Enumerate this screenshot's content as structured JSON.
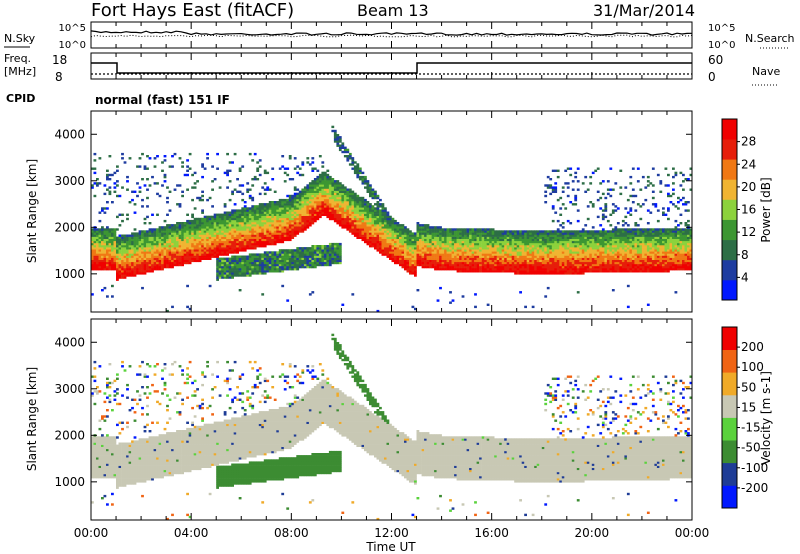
{
  "header": {
    "station": "Fort Hays East (fitACF)",
    "beam": "Beam 13",
    "date": "31/Mar/2014"
  },
  "top_panels": {
    "nsky_label": "N.Sky",
    "nsearch_label": "N.Search",
    "noise_ticks": [
      "10^5",
      "10^0"
    ],
    "freq_label_1": "Freq.",
    "freq_label_2": "[MHz]",
    "freq_ticks": [
      "18",
      "8"
    ],
    "nave_label": "Nave",
    "nave_ticks": [
      "60",
      "0"
    ],
    "cpid_label": "CPID",
    "cpid_text": "normal (fast) 151 IF"
  },
  "chart_data": [
    {
      "type": "heatmap",
      "title": "",
      "ylabel": "Slant Range [km]",
      "xlabel": "",
      "x_range_hours": [
        0,
        24
      ],
      "ylim": [
        180,
        4500
      ],
      "yticks": [
        1000,
        2000,
        3000,
        4000
      ],
      "colorbar": {
        "label": "Power [dB]",
        "ticks": [
          "28",
          "24",
          "20",
          "16",
          "12",
          "8",
          "4"
        ],
        "range": [
          0,
          30
        ]
      },
      "features": [
        {
          "name": "main ground-scatter band",
          "hours": [
            0,
            24
          ],
          "range_km": "1100-2700",
          "power_db": "15-30"
        },
        {
          "name": "lower echo band",
          "hours": [
            5,
            10
          ],
          "range_km": "800-1600",
          "power_db": "5-15"
        }
      ]
    },
    {
      "type": "heatmap",
      "title": "",
      "ylabel": "Slant Range [km]",
      "xlabel": "Time UT",
      "x_range_hours": [
        0,
        24
      ],
      "ylim": [
        180,
        4500
      ],
      "yticks": [
        1000,
        2000,
        3000,
        4000
      ],
      "xticks": [
        "00:00",
        "04:00",
        "08:00",
        "12:00",
        "16:00",
        "20:00",
        "00:00"
      ],
      "colorbar": {
        "label": "Velocity [m s-1]",
        "ticks": [
          "200",
          "100",
          "50",
          "15",
          "-15",
          "-50",
          "-100",
          "-200"
        ],
        "range": [
          -250,
          250
        ]
      },
      "features": [
        {
          "name": "ground scatter (grey)",
          "hours": [
            0,
            24
          ],
          "range_km": "1100-2700"
        },
        {
          "name": "ionospheric scatter (green, +50 m/s)",
          "hours": [
            5,
            10
          ],
          "range_km": "800-1600"
        },
        {
          "name": "descending streak",
          "hours": [
            9.5,
            12.2
          ],
          "range_km": "1900-4100"
        }
      ]
    }
  ],
  "colors": {
    "power_scale": [
      "#0018ff",
      "#1e3ca0",
      "#2d6e46",
      "#3c9632",
      "#8cd23c",
      "#f0b432",
      "#f07814",
      "#e61e0a",
      "#f00000"
    ],
    "velocity_scale": [
      "#f00000",
      "#f06414",
      "#f0aa28",
      "#c8c8b4",
      "#5ad23c",
      "#3c8c32",
      "#1e3c96",
      "#0018ff"
    ]
  }
}
